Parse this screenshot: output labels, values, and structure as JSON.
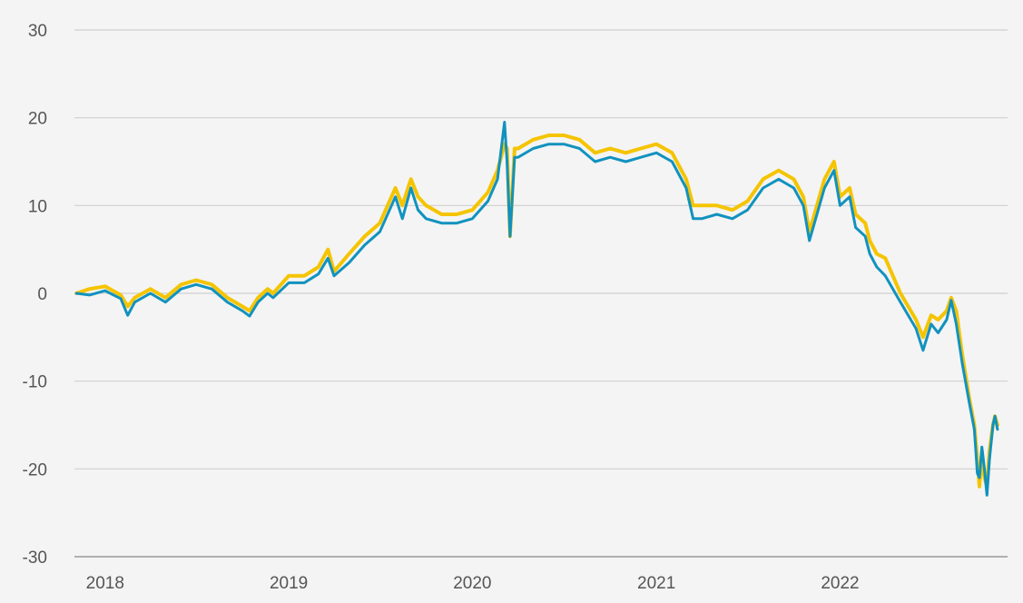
{
  "chart_data": {
    "type": "line",
    "title": "",
    "xlabel": "",
    "ylabel": "",
    "x_tick_labels": [
      "2018",
      "2019",
      "2020",
      "2021",
      "2022"
    ],
    "y_tick_labels": [
      "30",
      "20",
      "10",
      "0",
      "-10",
      "-20",
      "-30"
    ],
    "y_ticks": [
      30,
      20,
      10,
      0,
      -10,
      -20,
      -30
    ],
    "xlim": [
      "2017-11-01",
      "2022-11-30"
    ],
    "ylim": [
      -30,
      30
    ],
    "grid": true,
    "legend": "none",
    "series": [
      {
        "color": "#f5c400",
        "x": [
          "2017-11-05",
          "2017-12-01",
          "2018-01-01",
          "2018-02-01",
          "2018-02-15",
          "2018-03-01",
          "2018-04-01",
          "2018-05-01",
          "2018-06-01",
          "2018-07-01",
          "2018-08-01",
          "2018-09-01",
          "2018-10-01",
          "2018-10-15",
          "2018-11-01",
          "2018-11-20",
          "2018-12-01",
          "2019-01-01",
          "2019-02-01",
          "2019-03-01",
          "2019-03-20",
          "2019-04-01",
          "2019-05-01",
          "2019-06-01",
          "2019-07-01",
          "2019-08-01",
          "2019-08-15",
          "2019-09-01",
          "2019-09-15",
          "2019-10-01",
          "2019-11-01",
          "2019-12-01",
          "2020-01-01",
          "2020-02-01",
          "2020-02-20",
          "2020-03-05",
          "2020-03-10",
          "2020-03-16",
          "2020-03-25",
          "2020-04-01",
          "2020-05-01",
          "2020-06-01",
          "2020-07-01",
          "2020-08-01",
          "2020-09-01",
          "2020-10-01",
          "2020-11-01",
          "2020-12-01",
          "2021-01-01",
          "2021-02-01",
          "2021-03-01",
          "2021-03-15",
          "2021-04-01",
          "2021-05-01",
          "2021-06-01",
          "2021-07-01",
          "2021-08-01",
          "2021-09-01",
          "2021-10-01",
          "2021-10-20",
          "2021-11-01",
          "2021-12-01",
          "2021-12-20",
          "2022-01-01",
          "2022-01-20",
          "2022-02-01",
          "2022-02-20",
          "2022-03-01",
          "2022-03-15",
          "2022-04-01",
          "2022-05-01",
          "2022-06-01",
          "2022-06-15",
          "2022-07-01",
          "2022-07-15",
          "2022-08-01",
          "2022-08-10",
          "2022-08-20",
          "2022-09-01",
          "2022-09-15",
          "2022-09-25",
          "2022-10-01",
          "2022-10-05",
          "2022-10-10",
          "2022-10-15",
          "2022-10-20",
          "2022-10-25",
          "2022-11-01",
          "2022-11-05",
          "2022-11-10"
        ],
        "values": [
          0,
          0.5,
          0.8,
          -0.2,
          -1.5,
          -0.5,
          0.5,
          -0.5,
          1.0,
          1.5,
          1.0,
          -0.5,
          -1.5,
          -2.0,
          -0.5,
          0.5,
          0,
          2.0,
          2.0,
          3.0,
          5.0,
          2.5,
          4.5,
          6.5,
          8.0,
          12.0,
          10.0,
          13.0,
          11.0,
          10.0,
          9.0,
          9.0,
          9.5,
          11.5,
          14.0,
          17.0,
          16.5,
          6.5,
          16.5,
          16.5,
          17.5,
          18.0,
          18.0,
          17.5,
          16.0,
          16.5,
          16.0,
          16.5,
          17.0,
          16.0,
          13.0,
          10.0,
          10.0,
          10.0,
          9.5,
          10.5,
          13.0,
          14.0,
          13.0,
          11.0,
          7.0,
          13.0,
          15.0,
          11.0,
          12.0,
          9.0,
          8.0,
          6.0,
          4.5,
          4.0,
          0.0,
          -3.0,
          -5.0,
          -2.5,
          -3.0,
          -2.0,
          -0.5,
          -2.0,
          -7.0,
          -12.0,
          -15.0,
          -19.0,
          -22.0,
          -18.0,
          -21.0,
          -22.0,
          -18.0,
          -15.0,
          -14.0,
          -15.0
        ]
      },
      {
        "color": "#1192be",
        "x": [
          "2017-11-05",
          "2017-12-01",
          "2018-01-01",
          "2018-02-01",
          "2018-02-15",
          "2018-03-01",
          "2018-04-01",
          "2018-05-01",
          "2018-06-01",
          "2018-07-01",
          "2018-08-01",
          "2018-09-01",
          "2018-10-01",
          "2018-10-15",
          "2018-11-01",
          "2018-11-20",
          "2018-12-01",
          "2019-01-01",
          "2019-02-01",
          "2019-03-01",
          "2019-03-20",
          "2019-04-01",
          "2019-05-01",
          "2019-06-01",
          "2019-07-01",
          "2019-08-01",
          "2019-08-15",
          "2019-09-01",
          "2019-09-15",
          "2019-10-01",
          "2019-11-01",
          "2019-12-01",
          "2020-01-01",
          "2020-02-01",
          "2020-02-20",
          "2020-03-05",
          "2020-03-10",
          "2020-03-16",
          "2020-03-25",
          "2020-04-01",
          "2020-05-01",
          "2020-06-01",
          "2020-07-01",
          "2020-08-01",
          "2020-09-01",
          "2020-10-01",
          "2020-11-01",
          "2020-12-01",
          "2021-01-01",
          "2021-02-01",
          "2021-03-01",
          "2021-03-15",
          "2021-04-01",
          "2021-05-01",
          "2021-06-01",
          "2021-07-01",
          "2021-08-01",
          "2021-09-01",
          "2021-10-01",
          "2021-10-20",
          "2021-11-01",
          "2021-12-01",
          "2021-12-20",
          "2022-01-01",
          "2022-01-20",
          "2022-02-01",
          "2022-02-20",
          "2022-03-01",
          "2022-03-15",
          "2022-04-01",
          "2022-05-01",
          "2022-06-01",
          "2022-06-15",
          "2022-07-01",
          "2022-07-15",
          "2022-08-01",
          "2022-08-10",
          "2022-08-20",
          "2022-09-01",
          "2022-09-15",
          "2022-09-25",
          "2022-10-01",
          "2022-10-05",
          "2022-10-10",
          "2022-10-15",
          "2022-10-20",
          "2022-10-25",
          "2022-11-01",
          "2022-11-05",
          "2022-11-10"
        ],
        "values": [
          0,
          -0.2,
          0.3,
          -0.6,
          -2.5,
          -1.0,
          0,
          -1.0,
          0.5,
          1.0,
          0.5,
          -1.0,
          -2.0,
          -2.6,
          -1.0,
          0,
          -0.5,
          1.2,
          1.2,
          2.2,
          4.0,
          2.0,
          3.5,
          5.5,
          7.0,
          11.0,
          8.5,
          12.0,
          9.5,
          8.5,
          8.0,
          8.0,
          8.5,
          10.5,
          13.0,
          19.5,
          15.0,
          6.5,
          15.5,
          15.5,
          16.5,
          17.0,
          17.0,
          16.5,
          15.0,
          15.5,
          15.0,
          15.5,
          16.0,
          15.0,
          12.0,
          8.5,
          8.5,
          9.0,
          8.5,
          9.5,
          12.0,
          13.0,
          12.0,
          10.0,
          6.0,
          12.0,
          14.0,
          10.0,
          11.0,
          7.5,
          6.5,
          4.5,
          3.0,
          2.0,
          -1.0,
          -4.0,
          -6.5,
          -3.5,
          -4.5,
          -3.0,
          -0.8,
          -3.5,
          -8.0,
          -12.5,
          -15.5,
          -20.5,
          -21.0,
          -17.5,
          -20.0,
          -23.0,
          -19.0,
          -15.0,
          -14.0,
          -15.5
        ]
      }
    ]
  }
}
